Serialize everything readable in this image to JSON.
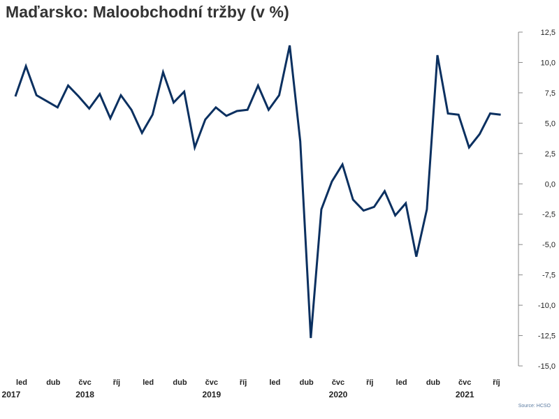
{
  "header": {
    "title": "Maďarsko: Maloobchodní tržby (v %)"
  },
  "footer": {
    "source": "Source: HCSO"
  },
  "chart_data": {
    "type": "line",
    "title": "Maďarsko: Maloobchodní tržby (v %)",
    "xlabel": "",
    "ylabel": "",
    "ylim": [
      -15,
      12.5
    ],
    "y_ticks": [
      "12,5",
      "10,0",
      "7,5",
      "5,0",
      "2,5",
      "0,0",
      "-2,5",
      "-5,0",
      "-7,5",
      "-10,0",
      "-12,5",
      "-15,0"
    ],
    "y_tick_values": [
      12.5,
      10,
      7.5,
      5,
      2.5,
      0,
      -2.5,
      -5,
      -7.5,
      -10,
      -12.5,
      -15
    ],
    "x_start": "2017-01",
    "x_ticks": [
      {
        "month": "2017-01",
        "label": "led"
      },
      {
        "month": "2017-04",
        "label": "dub"
      },
      {
        "month": "2017-07",
        "label": "čvc"
      },
      {
        "month": "2017-10",
        "label": "říj"
      },
      {
        "month": "2018-01",
        "label": "led"
      },
      {
        "month": "2018-04",
        "label": "dub"
      },
      {
        "month": "2018-07",
        "label": "čvc"
      },
      {
        "month": "2018-10",
        "label": "říj"
      },
      {
        "month": "2019-01",
        "label": "led"
      },
      {
        "month": "2019-04",
        "label": "dub"
      },
      {
        "month": "2019-07",
        "label": "čvc"
      },
      {
        "month": "2019-10",
        "label": "říj"
      },
      {
        "month": "2020-01",
        "label": "led"
      },
      {
        "month": "2020-04",
        "label": "dub"
      },
      {
        "month": "2020-07",
        "label": "čvc"
      },
      {
        "month": "2020-10",
        "label": "říj"
      }
    ],
    "year_labels": [
      {
        "month": "2016-12",
        "label": "2017"
      },
      {
        "month": "2017-07",
        "label": "2018"
      },
      {
        "month": "2018-07",
        "label": "2019"
      },
      {
        "month": "2019-07",
        "label": "2020"
      },
      {
        "month": "2020-07",
        "label": "2021"
      }
    ],
    "series": [
      {
        "color": "#0b3060",
        "x": [
          "2017-01",
          "2017-02",
          "2017-03",
          "2017-04",
          "2017-05",
          "2017-06",
          "2017-07",
          "2017-08",
          "2017-09",
          "2017-10",
          "2017-11",
          "2017-12",
          "2018-01",
          "2018-02",
          "2018-03",
          "2018-04",
          "2018-05",
          "2018-06",
          "2018-07",
          "2018-08",
          "2018-09",
          "2018-10",
          "2018-11",
          "2018-12",
          "2019-01",
          "2019-02",
          "2019-03",
          "2019-04",
          "2019-05",
          "2019-06",
          "2019-07",
          "2019-08",
          "2019-09",
          "2019-10",
          "2019-11",
          "2019-12",
          "2020-01",
          "2020-02",
          "2020-03",
          "2020-04",
          "2020-05",
          "2020-06",
          "2020-07",
          "2020-08",
          "2020-09",
          "2020-10",
          "2020-11"
        ],
        "values": [
          7.2,
          9.7,
          7.3,
          6.8,
          6.3,
          8.1,
          7.2,
          6.2,
          7.4,
          5.4,
          7.3,
          6.1,
          4.2,
          5.7,
          9.2,
          6.7,
          7.6,
          3.0,
          5.3,
          6.3,
          5.6,
          6.0,
          6.1,
          8.1,
          6.1,
          7.3,
          11.4,
          3.5,
          -12.7,
          -2.1,
          0.2,
          1.6,
          -1.3,
          -2.2,
          -1.9,
          -0.6,
          -2.6,
          -1.6,
          -6.0,
          -2.1,
          10.6,
          5.8,
          5.7,
          3.0,
          4.1,
          5.8,
          5.7
        ]
      }
    ],
    "grid": false,
    "legend": "none"
  }
}
